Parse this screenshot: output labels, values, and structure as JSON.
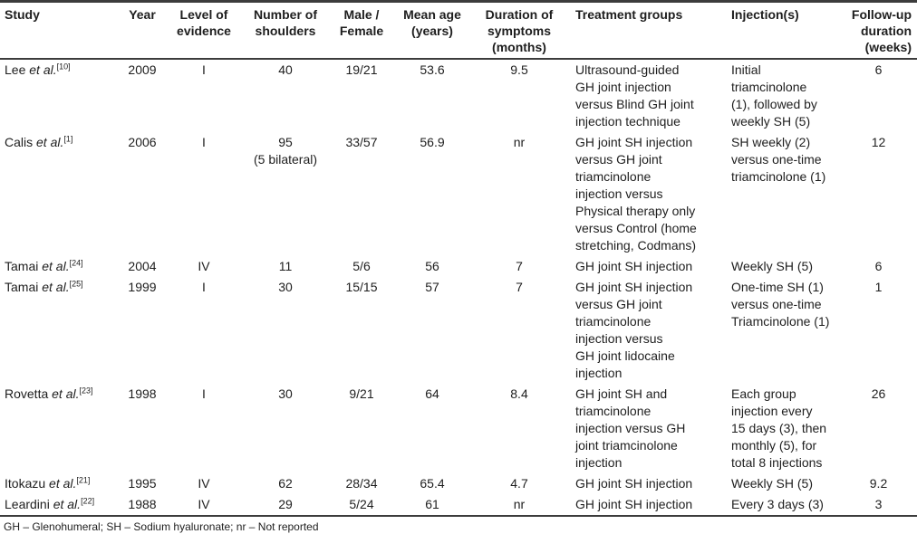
{
  "table": {
    "columns": [
      {
        "label": "Study"
      },
      {
        "label": "Year"
      },
      {
        "label": "Level of\nevidence"
      },
      {
        "label": "Number of\nshoulders"
      },
      {
        "label": "Male /\nFemale"
      },
      {
        "label": "Mean age\n(years)"
      },
      {
        "label": "Duration of\nsymptoms\n(months)"
      },
      {
        "label": "Treatment groups"
      },
      {
        "label": "Injection(s)"
      },
      {
        "label": "Follow-up\nduration\n(weeks)"
      }
    ],
    "rows": [
      {
        "study": {
          "name": "Lee ",
          "etal": "et al.",
          "ref": "[10]"
        },
        "year": "2009",
        "level": "I",
        "shoulders": "40",
        "male_female": "19/21",
        "mean_age": "53.6",
        "duration": "9.5",
        "treatment": "Ultrasound-guided\nGH joint injection\nversus Blind GH joint\ninjection technique",
        "injection": "Initial\ntriamcinolone\n(1), followed by\nweekly SH (5)",
        "followup": "6"
      },
      {
        "study": {
          "name": "Calis ",
          "etal": "et al.",
          "ref": "[1]"
        },
        "year": "2006",
        "level": "I",
        "shoulders": "95\n(5 bilateral)",
        "male_female": "33/57",
        "mean_age": "56.9",
        "duration": "nr",
        "treatment": "GH joint SH injection\nversus GH joint\ntriamcinolone\ninjection versus\nPhysical therapy only\nversus Control (home\nstretching, Codmans)",
        "injection": "SH weekly (2)\nversus one-time\ntriamcinolone (1)",
        "followup": "12"
      },
      {
        "study": {
          "name": "Tamai ",
          "etal": "et al.",
          "ref": "[24]"
        },
        "year": "2004",
        "level": "IV",
        "shoulders": "11",
        "male_female": "5/6",
        "mean_age": "56",
        "duration": "7",
        "treatment": "GH joint SH injection",
        "injection": "Weekly SH (5)",
        "followup": "6"
      },
      {
        "study": {
          "name": "Tamai ",
          "etal": "et al.",
          "ref": "[25]"
        },
        "year": "1999",
        "level": "I",
        "shoulders": "30",
        "male_female": "15/15",
        "mean_age": "57",
        "duration": "7",
        "treatment": "GH joint SH injection\nversus GH joint\ntriamcinolone\ninjection versus\nGH joint lidocaine\ninjection",
        "injection": "One-time SH (1)\nversus one-time\nTriamcinolone (1)",
        "followup": "1"
      },
      {
        "study": {
          "name": "Rovetta ",
          "etal": "et al.",
          "ref": "[23]"
        },
        "year": "1998",
        "level": "I",
        "shoulders": "30",
        "male_female": "9/21",
        "mean_age": "64",
        "duration": "8.4",
        "treatment": "GH joint SH and\ntriamcinolone\ninjection versus GH\njoint triamcinolone\ninjection",
        "injection": "Each group\ninjection every\n15 days (3), then\nmonthly (5), for\ntotal 8 injections",
        "followup": "26"
      },
      {
        "study": {
          "name": "Itokazu ",
          "etal": "et al.",
          "ref": "[21]"
        },
        "year": "1995",
        "level": "IV",
        "shoulders": "62",
        "male_female": "28/34",
        "mean_age": "65.4",
        "duration": "4.7",
        "treatment": "GH joint SH injection",
        "injection": "Weekly SH (5)",
        "followup": "9.2"
      },
      {
        "study": {
          "name": "Leardini ",
          "etal": "et al.",
          "ref": "[22]"
        },
        "year": "1988",
        "level": "IV",
        "shoulders": "29",
        "male_female": "5/24",
        "mean_age": "61",
        "duration": "nr",
        "treatment": "GH joint SH injection",
        "injection": "Every 3 days (3)",
        "followup": "3"
      }
    ]
  },
  "footer": {
    "note": "GH – Glenohumeral; SH – Sodium hyaluronate; nr – Not reported"
  }
}
